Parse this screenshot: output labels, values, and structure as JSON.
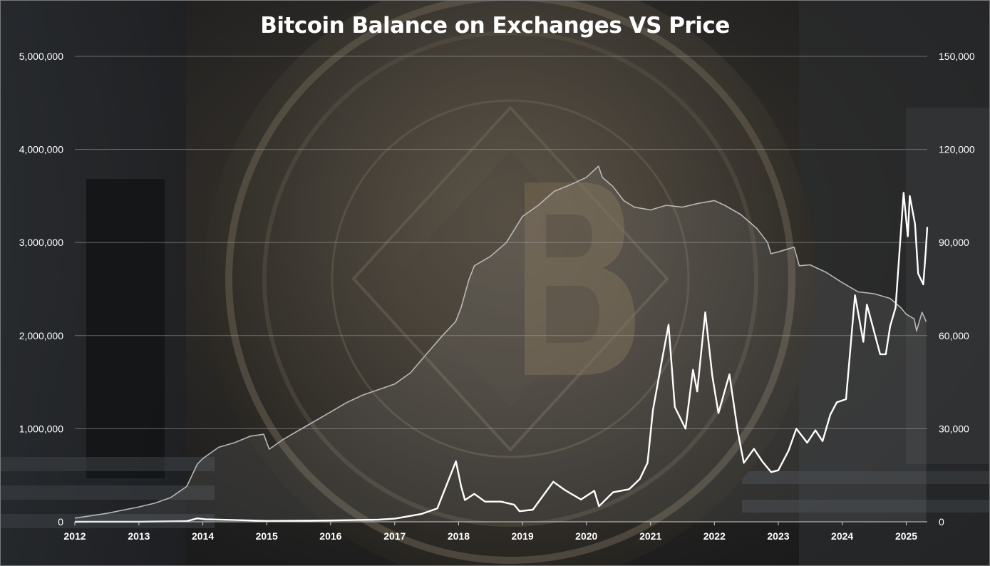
{
  "chart_data": {
    "type": "line",
    "title": "Bitcoin Balance on Exchanges VS Price",
    "x_ticks": [
      "2012",
      "2013",
      "2014",
      "2015",
      "2016",
      "2017",
      "2018",
      "2019",
      "2020",
      "2021",
      "2022",
      "2023",
      "2024",
      "2025"
    ],
    "xlim": [
      "2012-01-01",
      "2025-05-01"
    ],
    "y_left": {
      "lim": [
        0,
        5000000
      ],
      "ticks": [
        "0",
        "1,000,000",
        "2,000,000",
        "3,000,000",
        "4,000,000",
        "5,000,000"
      ]
    },
    "y_right": {
      "lim": [
        0,
        150000
      ],
      "ticks": [
        "0",
        "30,000",
        "60,000",
        "90,000",
        "120,000",
        "150,000"
      ]
    },
    "grid": true,
    "legend": "none",
    "series": [
      {
        "axis": "left",
        "style": "area",
        "color": "#b8b8b8",
        "x": [
          "2012-01-01",
          "2012-07-01",
          "2013-01-01",
          "2013-04-01",
          "2013-07-01",
          "2013-10-01",
          "2013-12-01",
          "2014-01-01",
          "2014-04-01",
          "2014-07-01",
          "2014-10-01",
          "2014-12-15",
          "2015-01-15",
          "2015-04-01",
          "2015-07-01",
          "2015-10-01",
          "2016-01-01",
          "2016-04-01",
          "2016-07-01",
          "2016-10-01",
          "2017-01-01",
          "2017-04-01",
          "2017-07-01",
          "2017-10-01",
          "2017-12-15",
          "2018-01-15",
          "2018-03-01",
          "2018-04-01",
          "2018-07-01",
          "2018-10-01",
          "2019-01-01",
          "2019-04-01",
          "2019-07-01",
          "2019-10-01",
          "2020-01-01",
          "2020-03-10",
          "2020-04-01",
          "2020-06-01",
          "2020-08-01",
          "2020-10-01",
          "2021-01-01",
          "2021-04-01",
          "2021-07-01",
          "2021-10-01",
          "2022-01-01",
          "2022-03-01",
          "2022-06-01",
          "2022-09-01",
          "2022-11-01",
          "2022-11-20",
          "2023-01-01",
          "2023-04-01",
          "2023-05-01",
          "2023-07-01",
          "2023-10-01",
          "2024-01-01",
          "2024-04-01",
          "2024-07-01",
          "2024-10-01",
          "2024-12-01",
          "2025-01-01",
          "2025-02-15",
          "2025-03-01",
          "2025-04-01",
          "2025-04-25"
        ],
        "values": [
          40000,
          90000,
          160000,
          200000,
          260000,
          380000,
          620000,
          680000,
          800000,
          850000,
          920000,
          940000,
          780000,
          880000,
          980000,
          1080000,
          1180000,
          1280000,
          1360000,
          1420000,
          1480000,
          1600000,
          1800000,
          2000000,
          2150000,
          2300000,
          2600000,
          2750000,
          2850000,
          3000000,
          3280000,
          3400000,
          3550000,
          3620000,
          3700000,
          3820000,
          3700000,
          3600000,
          3450000,
          3380000,
          3350000,
          3400000,
          3380000,
          3420000,
          3450000,
          3400000,
          3300000,
          3150000,
          3000000,
          2880000,
          2900000,
          2950000,
          2750000,
          2760000,
          2680000,
          2570000,
          2470000,
          2450000,
          2400000,
          2300000,
          2230000,
          2180000,
          2050000,
          2250000,
          2150000
        ]
      },
      {
        "axis": "right",
        "style": "line",
        "color": "#ffffff",
        "x": [
          "2012-01-01",
          "2013-01-01",
          "2013-10-01",
          "2013-12-01",
          "2014-01-15",
          "2014-06-01",
          "2015-01-01",
          "2016-01-01",
          "2016-10-01",
          "2017-01-01",
          "2017-06-01",
          "2017-09-01",
          "2017-12-17",
          "2018-01-15",
          "2018-02-06",
          "2018-04-01",
          "2018-06-01",
          "2018-09-01",
          "2018-11-15",
          "2018-12-15",
          "2019-03-01",
          "2019-06-26",
          "2019-09-01",
          "2019-12-01",
          "2020-02-15",
          "2020-03-13",
          "2020-06-01",
          "2020-09-01",
          "2020-11-01",
          "2020-12-15",
          "2021-01-15",
          "2021-03-01",
          "2021-04-14",
          "2021-05-20",
          "2021-07-20",
          "2021-09-01",
          "2021-09-25",
          "2021-11-10",
          "2021-12-20",
          "2022-01-24",
          "2022-03-28",
          "2022-05-15",
          "2022-06-18",
          "2022-08-15",
          "2022-10-01",
          "2022-11-21",
          "2023-01-01",
          "2023-03-01",
          "2023-04-14",
          "2023-06-15",
          "2023-08-01",
          "2023-09-11",
          "2023-10-25",
          "2023-12-01",
          "2024-01-23",
          "2024-03-14",
          "2024-05-01",
          "2024-05-21",
          "2024-08-05",
          "2024-09-06",
          "2024-10-01",
          "2024-11-01",
          "2024-12-17",
          "2025-01-10",
          "2025-01-21",
          "2025-02-20",
          "2025-03-10",
          "2025-04-08",
          "2025-04-22",
          "2025-05-01"
        ],
        "values": [
          5,
          13,
          200,
          1100,
          800,
          620,
          300,
          430,
          700,
          1000,
          2500,
          4300,
          19500,
          11500,
          7000,
          9000,
          6500,
          6500,
          5500,
          3400,
          3900,
          12900,
          10200,
          7200,
          10000,
          5000,
          9500,
          10500,
          13800,
          19000,
          36000,
          50000,
          63500,
          37000,
          30000,
          49000,
          42000,
          67500,
          47000,
          35000,
          47500,
          29000,
          19000,
          23500,
          19500,
          16000,
          16600,
          23000,
          30000,
          25500,
          29500,
          26000,
          34500,
          38500,
          39500,
          73000,
          58000,
          70000,
          54000,
          54000,
          63000,
          69000,
          106000,
          92000,
          105000,
          96000,
          80000,
          76500,
          87000,
          95000
        ]
      }
    ]
  }
}
